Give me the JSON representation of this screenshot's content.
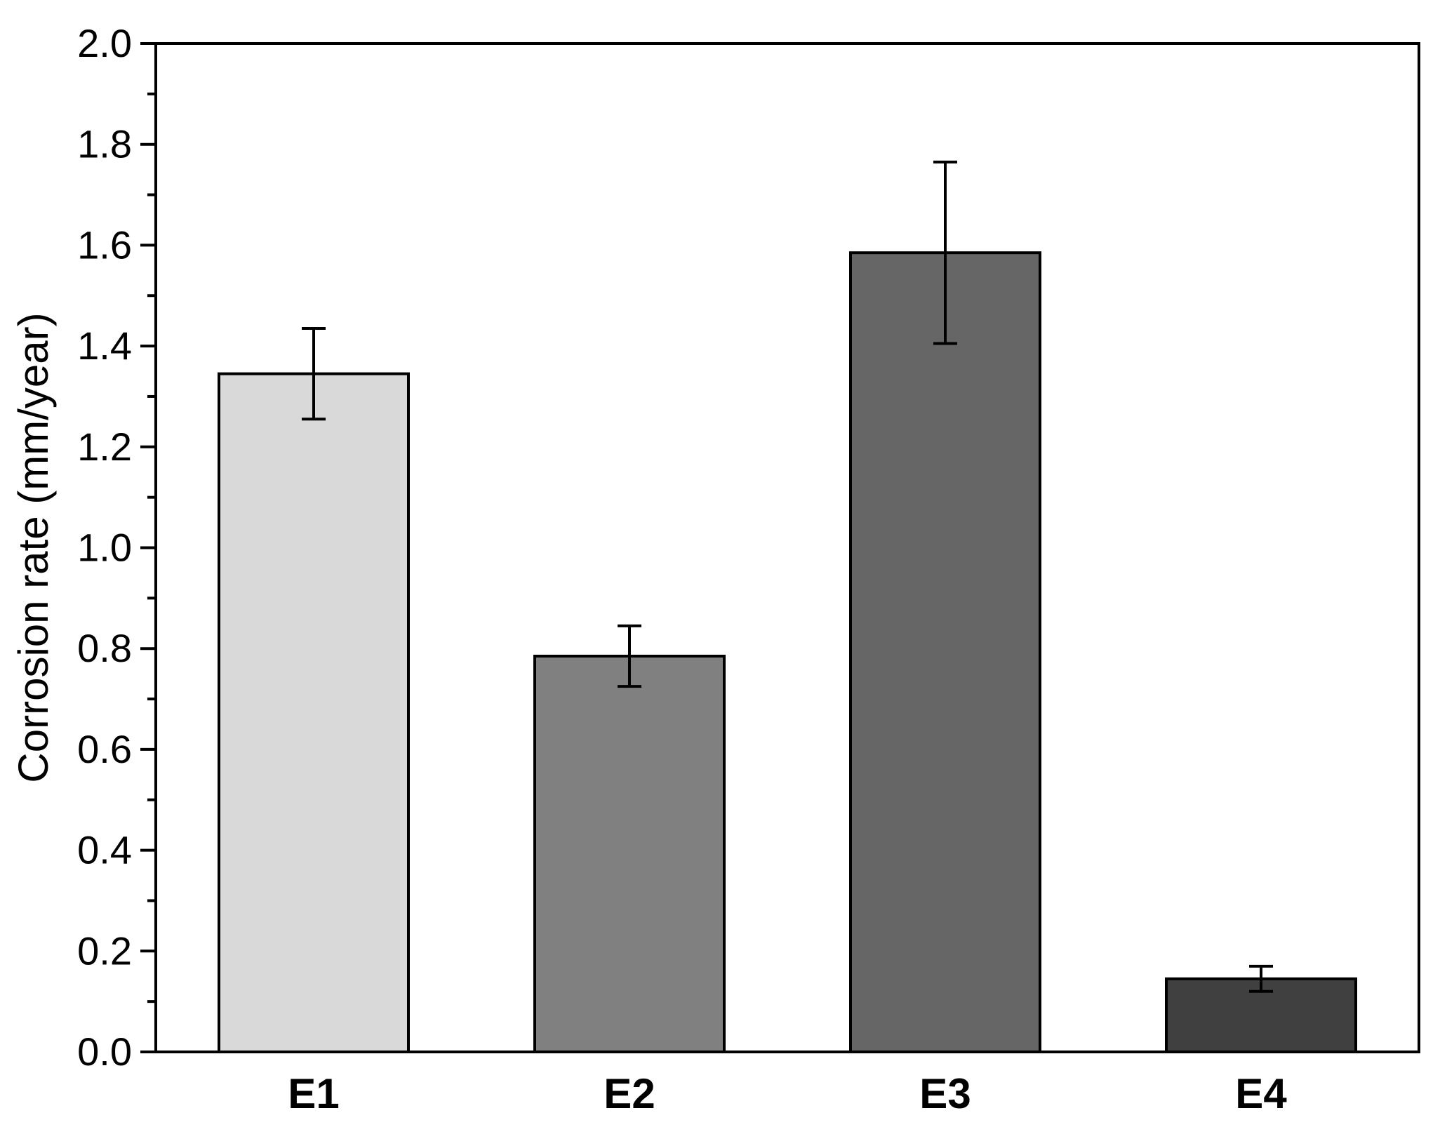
{
  "chart_data": {
    "type": "bar",
    "title": "",
    "xlabel": "",
    "ylabel": "Corrosion rate (mm/year)",
    "ylim": [
      0,
      2.0
    ],
    "yticks": [
      "0.0",
      "0.2",
      "0.4",
      "0.6",
      "0.8",
      "1.0",
      "1.2",
      "1.4",
      "1.6",
      "1.8",
      "2.0"
    ],
    "categories": [
      "E1",
      "E2",
      "E3",
      "E4"
    ],
    "values": [
      1.345,
      0.785,
      1.585,
      0.145
    ],
    "errors": [
      0.09,
      0.06,
      0.18,
      0.025
    ],
    "colors": [
      "#d9d9d9",
      "#808080",
      "#666666",
      "#404040"
    ],
    "grid": false,
    "legend": "none"
  }
}
